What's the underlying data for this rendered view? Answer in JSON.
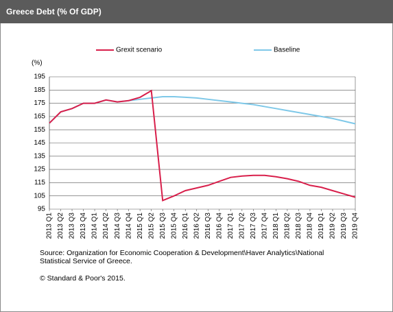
{
  "chart_data": {
    "type": "line",
    "title": "Greece Debt (% Of GDP)",
    "y_unit": "(%)",
    "categories": [
      "2013 Q1",
      "2013 Q2",
      "2013 Q3",
      "2013 Q4",
      "2014 Q1",
      "2014 Q2",
      "2014 Q3",
      "2014 Q4",
      "2015 Q1",
      "2015 Q2",
      "2015 Q3",
      "2015 Q4",
      "2016 Q1",
      "2016 Q2",
      "2016 Q3",
      "2016 Q4",
      "2017 Q1",
      "2017 Q2",
      "2017 Q3",
      "2017 Q4",
      "2018 Q1",
      "2018 Q2",
      "2018 Q3",
      "2018 Q4",
      "2019 Q1",
      "2019 Q2",
      "2019 Q3",
      "2019 Q4"
    ],
    "series": [
      {
        "name": "Grexit scenario",
        "color": "#d81e4a",
        "values": [
          160,
          168.5,
          171,
          175,
          175,
          177.5,
          176,
          177,
          179.5,
          184.5,
          101.5,
          105,
          109,
          111,
          113,
          116,
          119,
          120,
          120.5,
          120.5,
          119.5,
          118,
          116,
          113,
          111.5,
          109,
          106.5,
          104
        ]
      },
      {
        "name": "Baseline",
        "color": "#7ec8e8",
        "values": [
          160,
          168.5,
          171,
          175,
          175,
          177.5,
          176,
          177,
          178,
          179,
          180,
          180,
          179.5,
          179,
          178,
          177,
          176,
          175,
          174,
          172.5,
          171,
          169.5,
          168,
          166.5,
          165,
          163.5,
          161.5,
          159.5
        ]
      }
    ],
    "ylim": [
      95,
      195
    ],
    "yticks": [
      95,
      105,
      115,
      125,
      135,
      145,
      155,
      165,
      175,
      185,
      195
    ],
    "grid": true,
    "source": "Source: Organization for Economic Cooperation & Development\\Haver Analytics\\National Statistical Service of Greece.",
    "copyright": "© Standard & Poor's 2015."
  }
}
